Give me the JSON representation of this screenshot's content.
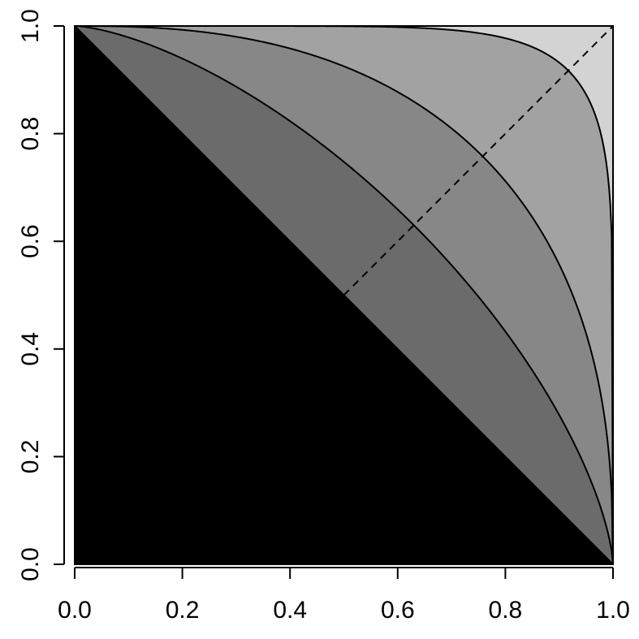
{
  "chart_data": {
    "type": "area",
    "xlim": [
      0,
      1
    ],
    "ylim": [
      0,
      1
    ],
    "x_ticks": [
      "0.0",
      "0.2",
      "0.4",
      "0.6",
      "0.8",
      "1.0"
    ],
    "y_ticks": [
      "0.0",
      "0.2",
      "0.4",
      "0.6",
      "0.8",
      "1.0"
    ],
    "grid": false,
    "curves": [
      {
        "id": "curve-p1",
        "shape": "superellipse",
        "exponent": 1,
        "color_below": "#000000"
      },
      {
        "id": "curve-p1_5",
        "shape": "superellipse",
        "exponent": 1.5,
        "color_below": "#6b6b6b"
      },
      {
        "id": "curve-p2_5",
        "shape": "superellipse",
        "exponent": 2.5,
        "color_below": "#878787"
      },
      {
        "id": "curve-p8",
        "shape": "superellipse",
        "exponent": 8,
        "color_below": "#a2a2a2"
      }
    ],
    "top_fill_color": "#d3d3d3",
    "reference_line": {
      "style": "dashed",
      "from": [
        0.5,
        0.5
      ],
      "to": [
        1,
        1
      ]
    }
  }
}
